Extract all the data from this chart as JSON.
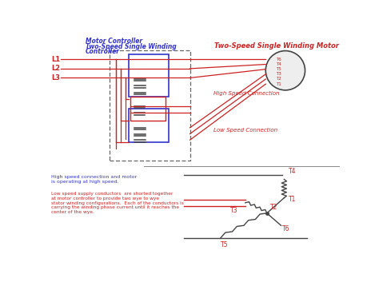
{
  "bg_color": "#ffffff",
  "controller_title_line1": "Motor Controller",
  "controller_title_line2": "Two-Speed Single Winding",
  "controller_title_line3": "Controller",
  "motor_title": "Two-Speed Single Winding Motor",
  "high_speed_label": "High Speed Connection",
  "low_speed_label": "Low Speed Connection",
  "L_labels": [
    "L1",
    "L2",
    "L3"
  ],
  "T_labels_motor": [
    "T6",
    "T4",
    "T5",
    "T3",
    "T2",
    "T1"
  ],
  "text_blue": "#3333cc",
  "text_red": "#cc2222",
  "line_red": "#cc2222",
  "line_blue": "#3333cc",
  "line_dark": "#444444",
  "note1_line1": "High speed connection and motor",
  "note1_line2": "is operating at high speed.",
  "note2": "Low speed supply conductors  are shorted together\nat motor controller to provide two wye to wye\nstator winding configurations.  Each of the conductors is\ncarrying the winding phase current until it reaches the\ncenter of the wye.",
  "bottom_T_labels": [
    "T4",
    "T1",
    "T3",
    "T2",
    "T5",
    "T6"
  ]
}
